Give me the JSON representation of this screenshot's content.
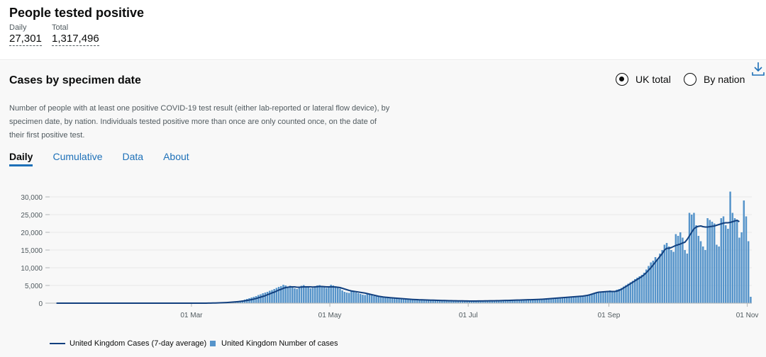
{
  "headline": {
    "title": "People tested positive",
    "daily_label": "Daily",
    "daily_value": "27,301",
    "total_label": "Total",
    "total_value": "1,317,496"
  },
  "card": {
    "title": "Cases by specimen date",
    "radio_uk": "UK total",
    "radio_nation": "By nation",
    "selected": "UK total",
    "description": "Number of people with at least one positive COVID-19 test result (either lab-reported or lateral flow device), by specimen date, by nation. Individuals tested positive more than once are only counted once, on the date of their first positive test.",
    "tabs": [
      "Daily",
      "Cumulative",
      "Data",
      "About"
    ],
    "active_tab": "Daily",
    "download_icon": "download-icon"
  },
  "colors": {
    "bar": "#5694ca",
    "line": "#12407f",
    "link": "#1d70b8"
  },
  "chart_data": {
    "type": "bar",
    "title": "",
    "xlabel": "",
    "ylabel": "",
    "ylim": [
      0,
      30000
    ],
    "yticks": [
      "0",
      "5,000",
      "10,000",
      "15,000",
      "20,000",
      "25,000",
      "30,000"
    ],
    "xticks": [
      "01 Mar",
      "01 May",
      "01 Jul",
      "01 Sep",
      "01 Nov"
    ],
    "grid": true,
    "legend_position": "bottom-left",
    "series": [
      {
        "name": "United Kingdom Number of cases",
        "type": "bar",
        "values": [
          0,
          0,
          0,
          0,
          0,
          0,
          0,
          0,
          0,
          0,
          0,
          0,
          0,
          0,
          0,
          0,
          0,
          0,
          0,
          0,
          0,
          0,
          0,
          0,
          0,
          0,
          0,
          0,
          0,
          0,
          0,
          0,
          0,
          0,
          0,
          0,
          0,
          0,
          0,
          0,
          0,
          0,
          0,
          0,
          0,
          0,
          0,
          0,
          0,
          0,
          0,
          0,
          0,
          0,
          0,
          0,
          0,
          0,
          0,
          0,
          1,
          1,
          2,
          2,
          5,
          10,
          20,
          30,
          40,
          60,
          80,
          100,
          120,
          150,
          200,
          250,
          300,
          350,
          400,
          500,
          600,
          700,
          800,
          1000,
          1200,
          1400,
          1600,
          1800,
          2000,
          2300,
          2500,
          2800,
          3000,
          3200,
          3500,
          3700,
          4000,
          4300,
          4600,
          4800,
          5200,
          5000,
          4700,
          4900,
          4500,
          4200,
          4000,
          4600,
          4900,
          5100,
          4800,
          4400,
          4200,
          4300,
          4700,
          5000,
          5100,
          4800,
          4500,
          4300,
          4600,
          5200,
          5000,
          4800,
          4400,
          4100,
          3600,
          3200,
          3000,
          2900,
          3300,
          3500,
          3000,
          2800,
          2600,
          2400,
          2300,
          2700,
          2500,
          2200,
          2000,
          1900,
          1800,
          1700,
          1650,
          1600,
          1550,
          1500,
          1450,
          1400,
          1350,
          1300,
          1250,
          1200,
          1150,
          1100,
          1050,
          1000,
          980,
          960,
          940,
          920,
          900,
          880,
          860,
          840,
          820,
          800,
          780,
          760,
          740,
          720,
          700,
          690,
          680,
          670,
          660,
          650,
          640,
          630,
          620,
          610,
          600,
          600,
          600,
          610,
          620,
          630,
          640,
          650,
          660,
          670,
          680,
          690,
          700,
          720,
          740,
          760,
          780,
          800,
          820,
          840,
          860,
          880,
          900,
          920,
          940,
          960,
          980,
          1000,
          1020,
          1040,
          1060,
          1080,
          1100,
          1150,
          1200,
          1250,
          1300,
          1350,
          1400,
          1450,
          1500,
          1550,
          1600,
          1650,
          1700,
          1750,
          1800,
          1850,
          1900,
          1950,
          2000,
          2100,
          2200,
          2400,
          2600,
          2800,
          3000,
          3200,
          3000,
          3300,
          3100,
          3400,
          3600,
          3200,
          3500,
          3800,
          4000,
          4300,
          4700,
          5100,
          5500,
          5900,
          6300,
          6800,
          7200,
          7600,
          8000,
          8600,
          9500,
          10500,
          11500,
          12000,
          13000,
          12500,
          14000,
          15000,
          16500,
          17000,
          16000,
          15000,
          14500,
          19500,
          19000,
          20000,
          18500,
          15000,
          14000,
          25500,
          25000,
          25500,
          22000,
          19000,
          17500,
          16000,
          15000,
          24000,
          23500,
          23000,
          22500,
          16500,
          16000,
          24000,
          24500,
          22000,
          21000,
          31500,
          25500,
          24000,
          23500,
          18500,
          20000,
          29000,
          24500,
          17500,
          1800
        ]
      },
      {
        "name": "United Kingdom Cases (7-day average)",
        "type": "line",
        "values": [
          0,
          0,
          0,
          0,
          0,
          0,
          0,
          0,
          0,
          0,
          0,
          0,
          0,
          0,
          0,
          0,
          0,
          0,
          0,
          0,
          0,
          0,
          0,
          0,
          0,
          0,
          0,
          0,
          0,
          0,
          0,
          0,
          0,
          0,
          0,
          0,
          0,
          0,
          0,
          0,
          0,
          0,
          0,
          0,
          0,
          0,
          0,
          0,
          0,
          0,
          0,
          0,
          0,
          0,
          0,
          0,
          0,
          0,
          0,
          0,
          0,
          1,
          1,
          2,
          3,
          6,
          10,
          17,
          26,
          40,
          55,
          73,
          92,
          114,
          146,
          181,
          223,
          267,
          314,
          371,
          430,
          500,
          581,
          671,
          771,
          886,
          1000,
          1160,
          1314,
          1514,
          1700,
          1900,
          2100,
          2400,
          2600,
          2900,
          3100,
          3400,
          3700,
          3900,
          4200,
          4400,
          4500,
          4600,
          4600,
          4600,
          4500,
          4500,
          4550,
          4600,
          4600,
          4600,
          4600,
          4550,
          4600,
          4650,
          4700,
          4700,
          4650,
          4600,
          4600,
          4600,
          4600,
          4550,
          4500,
          4400,
          4200,
          4000,
          3800,
          3600,
          3450,
          3350,
          3250,
          3150,
          3050,
          2950,
          2850,
          2700,
          2550,
          2400,
          2250,
          2100,
          1950,
          1850,
          1750,
          1680,
          1620,
          1560,
          1500,
          1450,
          1400,
          1350,
          1300,
          1250,
          1200,
          1150,
          1100,
          1060,
          1020,
          990,
          960,
          940,
          920,
          900,
          880,
          860,
          840,
          820,
          800,
          780,
          760,
          740,
          720,
          700,
          690,
          680,
          670,
          660,
          650,
          640,
          630,
          620,
          610,
          605,
          605,
          610,
          615,
          625,
          635,
          645,
          655,
          665,
          675,
          685,
          695,
          710,
          725,
          745,
          765,
          785,
          805,
          825,
          845,
          865,
          885,
          905,
          925,
          945,
          965,
          985,
          1005,
          1030,
          1055,
          1080,
          1110,
          1150,
          1200,
          1250,
          1300,
          1350,
          1400,
          1450,
          1500,
          1550,
          1600,
          1650,
          1700,
          1750,
          1800,
          1850,
          1900,
          1950,
          2000,
          2100,
          2200,
          2350,
          2550,
          2750,
          2950,
          3100,
          3150,
          3200,
          3250,
          3300,
          3300,
          3300,
          3300,
          3400,
          3600,
          3900,
          4300,
          4700,
          5100,
          5500,
          5900,
          6300,
          6700,
          7100,
          7500,
          8000,
          8600,
          9300,
          10000,
          10800,
          11600,
          12400,
          13200,
          14000,
          15000,
          15500,
          15500,
          15700,
          16000,
          16300,
          16500,
          16700,
          17000,
          17200,
          18000,
          19000,
          20000,
          21000,
          21500,
          21700,
          21800,
          21600,
          21500,
          21500,
          21600,
          21700,
          21800,
          22000,
          22200,
          22400,
          22600,
          22700,
          22700,
          22800,
          23000,
          23200,
          23400,
          23000,
          null,
          null,
          null,
          null,
          null
        ]
      }
    ]
  }
}
